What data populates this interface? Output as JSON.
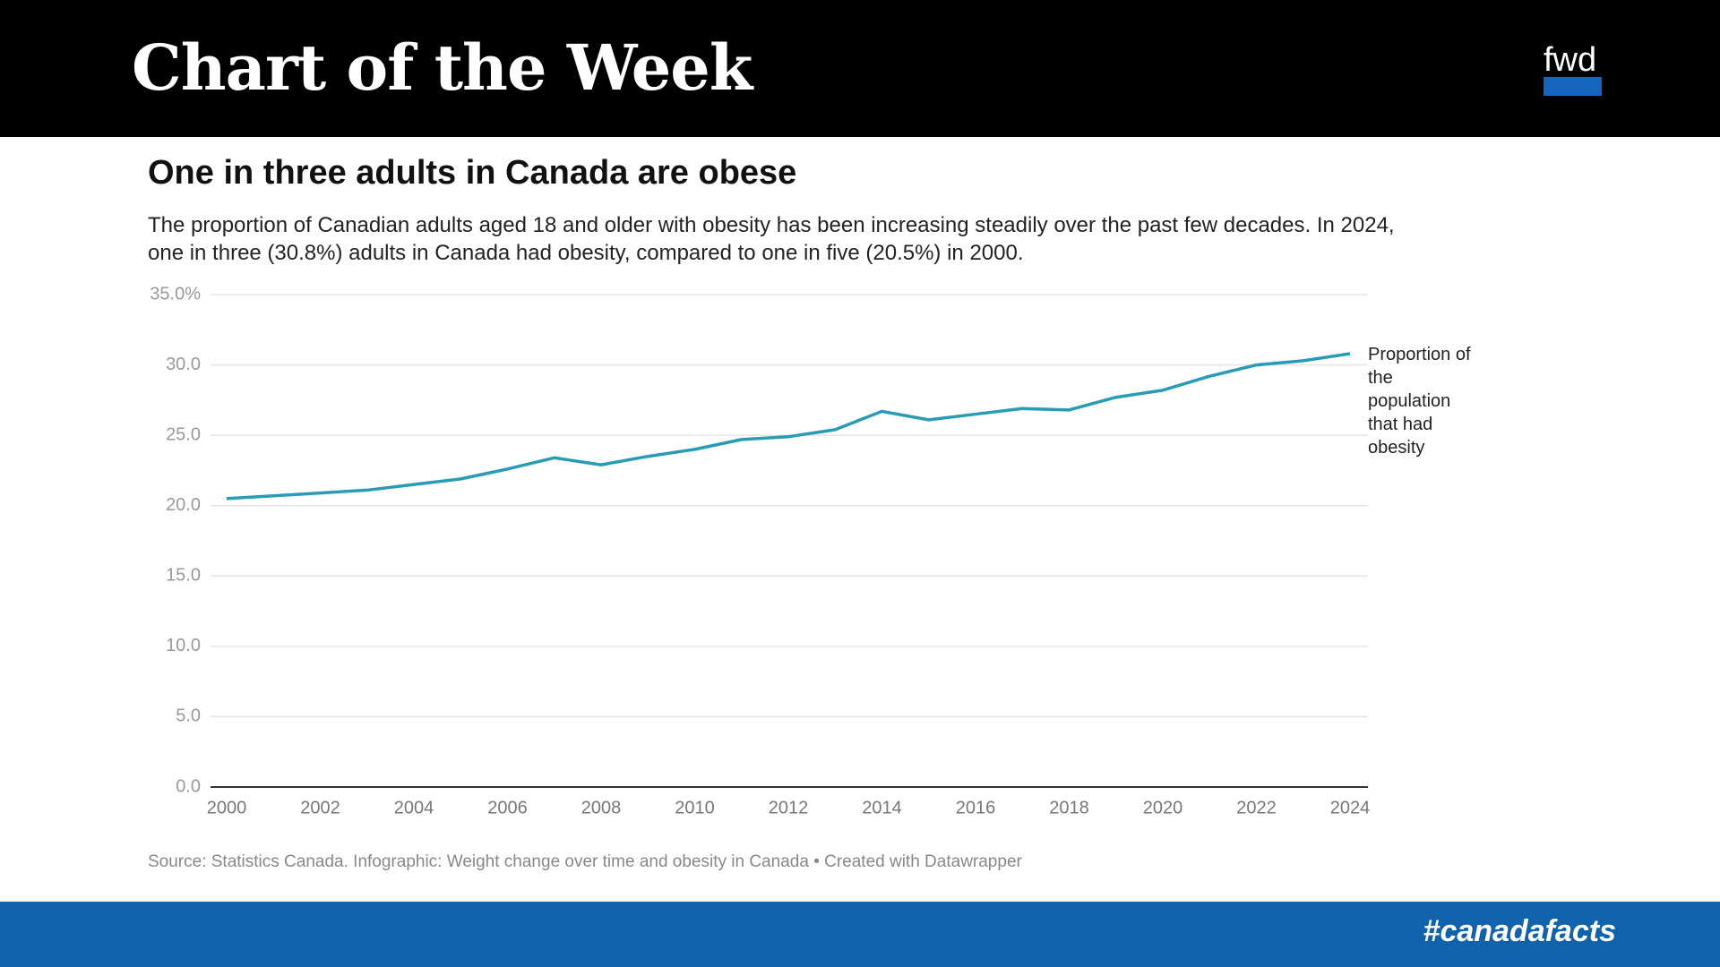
{
  "header": {
    "title": "Chart of the Week",
    "logo": "fwd"
  },
  "footer": {
    "hashtag": "#canadafacts"
  },
  "chart_data": {
    "type": "line",
    "title": "One in three adults in Canada are obese",
    "subtitle": "The proportion of Canadian adults aged 18 and older with obesity has been increasing steadily over the past few decades. In 2024, one in three (30.8%) adults in Canada had obesity, compared to one in five (20.5%) in 2000.",
    "source": "Source: Statistics Canada. Infographic: Weight change over time and obesity in Canada • Created with Datawrapper",
    "x": [
      2000,
      2001,
      2002,
      2003,
      2004,
      2005,
      2006,
      2007,
      2008,
      2009,
      2010,
      2011,
      2012,
      2013,
      2014,
      2015,
      2016,
      2017,
      2018,
      2019,
      2020,
      2021,
      2022,
      2023,
      2024
    ],
    "series": [
      {
        "name": "Proportion of the population that had obesity",
        "color": "#2a9bb5",
        "values": [
          20.5,
          20.7,
          20.9,
          21.1,
          21.5,
          21.9,
          22.6,
          23.4,
          22.9,
          23.5,
          24.0,
          24.7,
          24.9,
          25.4,
          26.7,
          26.1,
          26.5,
          26.9,
          26.8,
          27.7,
          28.2,
          29.2,
          30.0,
          30.3,
          30.8
        ]
      }
    ],
    "xlim": [
      2000,
      2024
    ],
    "xticks": [
      2000,
      2002,
      2004,
      2006,
      2008,
      2010,
      2012,
      2014,
      2016,
      2018,
      2020,
      2022,
      2024
    ],
    "ylim": [
      0,
      35
    ],
    "yticks": [
      {
        "value": 0,
        "label": "0.0"
      },
      {
        "value": 5,
        "label": "5.0"
      },
      {
        "value": 10,
        "label": "10.0"
      },
      {
        "value": 15,
        "label": "15.0"
      },
      {
        "value": 20,
        "label": "20.0"
      },
      {
        "value": 25,
        "label": "25.0"
      },
      {
        "value": 30,
        "label": "30.0"
      },
      {
        "value": 35,
        "label": "35.0%"
      }
    ],
    "grid": true
  }
}
